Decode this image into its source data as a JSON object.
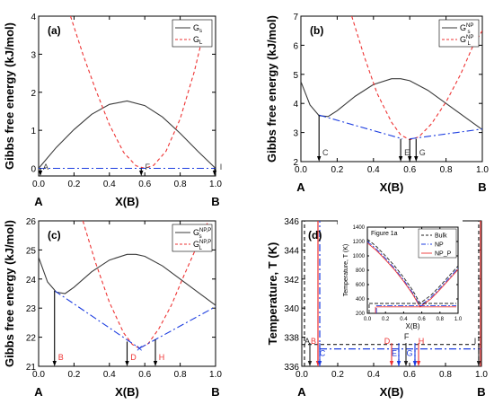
{
  "colors": {
    "solid": "#3a3a3a",
    "liquid": "#ee3333",
    "tangent": "#1c3de0",
    "axis": "#000000",
    "bulk": "#222222",
    "np": "#1c3de0",
    "np_p": "#ee3333"
  },
  "chart_data": [
    {
      "type": "line",
      "panel": "(a)",
      "ylabel": "Gibbs free energy (kJ/mol)",
      "xlabel": "X(B)",
      "end_labels": [
        "A",
        "B"
      ],
      "xlim": [
        0,
        1
      ],
      "ylim": [
        -0.2,
        4
      ],
      "xticks": [
        "0.0",
        "0.2",
        "0.4",
        "0.6",
        "0.8",
        "1.0"
      ],
      "yticks": [
        "0",
        "1",
        "2",
        "3",
        "4"
      ],
      "legend": [
        {
          "label": "G",
          "sub": "s",
          "sup": ""
        },
        {
          "label": "G",
          "sub": "L",
          "sup": ""
        }
      ],
      "series": [
        {
          "style": "solid",
          "x": [
            0,
            0.1,
            0.2,
            0.3,
            0.4,
            0.5,
            0.6,
            0.7,
            0.8,
            0.9,
            1.0
          ],
          "y": [
            0,
            0.55,
            1.02,
            1.42,
            1.68,
            1.77,
            1.65,
            1.35,
            0.92,
            0.45,
            0
          ]
        },
        {
          "style": "liquid",
          "x": [
            0.18,
            0.25,
            0.32,
            0.4,
            0.48,
            0.55,
            0.6,
            0.65,
            0.72,
            0.8,
            0.88,
            0.95
          ],
          "y": [
            4.0,
            3.0,
            2.1,
            1.15,
            0.42,
            0.07,
            0,
            0.08,
            0.45,
            1.3,
            2.55,
            3.9
          ]
        },
        {
          "style": "tangent",
          "x": [
            0,
            1
          ],
          "y": [
            0,
            0
          ]
        }
      ],
      "drops": [
        {
          "x": 0.01,
          "y": 0.0,
          "label": "A",
          "color": "solid"
        },
        {
          "x": 0.58,
          "y": 0.0,
          "label": "F",
          "color": "solid"
        },
        {
          "x": 0.995,
          "y": 0.0,
          "label": "I",
          "color": "solid"
        }
      ]
    },
    {
      "type": "line",
      "panel": "(b)",
      "ylabel": "Gibbs free energy (kJ/mol)",
      "xlabel": "X(B)",
      "end_labels": [
        "A",
        "B"
      ],
      "xlim": [
        0,
        1
      ],
      "ylim": [
        2,
        7
      ],
      "xticks": [
        "0.0",
        "0.2",
        "0.4",
        "0.6",
        "0.8",
        "1.0"
      ],
      "yticks": [
        "2",
        "3",
        "4",
        "5",
        "6",
        "7"
      ],
      "legend": [
        {
          "label": "G",
          "sub": "s",
          "sup": "NP"
        },
        {
          "label": "G",
          "sub": "L",
          "sup": "NP"
        }
      ],
      "series": [
        {
          "style": "solid",
          "x": [
            0,
            0.05,
            0.1,
            0.15,
            0.2,
            0.3,
            0.4,
            0.5,
            0.55,
            0.6,
            0.7,
            0.8,
            0.9,
            1.0
          ],
          "y": [
            4.75,
            3.95,
            3.58,
            3.55,
            3.75,
            4.25,
            4.65,
            4.85,
            4.85,
            4.78,
            4.45,
            4.0,
            3.55,
            3.1
          ]
        },
        {
          "style": "liquid",
          "x": [
            0.28,
            0.35,
            0.42,
            0.5,
            0.55,
            0.6,
            0.65,
            0.72,
            0.8,
            0.88,
            0.95,
            1.0
          ],
          "y": [
            7.0,
            5.6,
            4.35,
            3.35,
            2.92,
            2.75,
            2.85,
            3.3,
            4.05,
            5.0,
            6.0,
            6.5
          ]
        },
        {
          "style": "tangent",
          "x": [
            0.1,
            0.56
          ],
          "y": [
            3.6,
            2.78
          ]
        },
        {
          "style": "tangent",
          "x": [
            0.6,
            1.0
          ],
          "y": [
            2.78,
            3.12
          ]
        }
      ],
      "drops": [
        {
          "x": 0.1,
          "y": 3.6,
          "label": "C",
          "color": "solid"
        },
        {
          "x": 0.55,
          "y": 2.78,
          "label": "E",
          "color": "solid"
        },
        {
          "x": 0.6,
          "y": 2.78,
          "label": "",
          "color": "solid"
        },
        {
          "x": 0.635,
          "y": 2.78,
          "label": "G",
          "color": "solid"
        }
      ]
    },
    {
      "type": "line",
      "panel": "(c)",
      "ylabel": "Gibbs free energy (kJ/mol)",
      "xlabel": "X(B)",
      "end_labels": [
        "A",
        "B"
      ],
      "xlim": [
        0,
        1
      ],
      "ylim": [
        21,
        26
      ],
      "xticks": [
        "0.0",
        "0.2",
        "0.4",
        "0.6",
        "0.8",
        "1.0"
      ],
      "yticks": [
        "21",
        "22",
        "23",
        "24",
        "25",
        "26"
      ],
      "legend": [
        {
          "label": "G",
          "sub": "s",
          "sup": "NP,P"
        },
        {
          "label": "G",
          "sub": "L",
          "sup": "NP,P"
        }
      ],
      "series": [
        {
          "style": "solid",
          "x": [
            0,
            0.05,
            0.1,
            0.15,
            0.2,
            0.3,
            0.4,
            0.5,
            0.55,
            0.6,
            0.7,
            0.8,
            0.9,
            1.0
          ],
          "y": [
            24.75,
            23.9,
            23.55,
            23.5,
            23.72,
            24.25,
            24.65,
            24.85,
            24.85,
            24.78,
            24.45,
            24.0,
            23.55,
            23.1
          ]
        },
        {
          "style": "liquid",
          "x": [
            0.25,
            0.32,
            0.4,
            0.48,
            0.53,
            0.57,
            0.62,
            0.68,
            0.75,
            0.82,
            0.9,
            0.96
          ],
          "y": [
            26.0,
            24.6,
            23.2,
            22.15,
            21.75,
            21.62,
            21.78,
            22.3,
            23.1,
            24.1,
            25.2,
            26.0
          ]
        },
        {
          "style": "tangent",
          "x": [
            0.09,
            0.57
          ],
          "y": [
            23.6,
            21.62
          ]
        },
        {
          "style": "tangent",
          "x": [
            0.57,
            1.0
          ],
          "y": [
            21.62,
            23.05
          ]
        }
      ],
      "marker": {
        "x": 0.57,
        "y": 21.62,
        "symbol": "×",
        "color": "tangent"
      },
      "drops": [
        {
          "x": 0.09,
          "y": 23.6,
          "label": "B",
          "color": "solid",
          "label_color": "liquid"
        },
        {
          "x": 0.5,
          "y": 21.85,
          "label": "D",
          "color": "solid",
          "label_color": "liquid"
        },
        {
          "x": 0.66,
          "y": 21.92,
          "label": "H",
          "color": "solid",
          "label_color": "liquid"
        }
      ]
    },
    {
      "type": "line",
      "panel": "(d)",
      "ylabel": "Temperature, T (K)",
      "xlabel": "X(B)",
      "end_labels": [
        "A",
        "B"
      ],
      "xlim": [
        0,
        1
      ],
      "ylim": [
        336,
        346
      ],
      "xticks": [
        "0.0",
        "0.2",
        "0.4",
        "0.6",
        "0.8",
        "1.0"
      ],
      "yticks": [
        "336",
        "338",
        "340",
        "342",
        "344",
        "346"
      ],
      "series": [
        {
          "style": "bulk",
          "dash": "4 3",
          "x": [
            0,
            1
          ],
          "y": [
            337.5,
            337.5
          ]
        },
        {
          "style": "bulk",
          "dash": "4 3",
          "x": [
            0.015,
            0.015
          ],
          "y": [
            336,
            346
          ]
        },
        {
          "style": "bulk",
          "dash": "4 3",
          "x": [
            0.985,
            0.985
          ],
          "y": [
            336,
            346
          ]
        },
        {
          "style": "np",
          "dash": "8 3 2 3",
          "x": [
            0.1,
            0.1
          ],
          "y": [
            336,
            346
          ]
        },
        {
          "style": "np",
          "dash": "8 3 2 3",
          "x": [
            0.1,
            1
          ],
          "y": [
            337.2,
            337.2
          ]
        },
        {
          "style": "np",
          "dash": "8 3 2 3",
          "x": [
            0.54,
            0.54
          ],
          "y": [
            336,
            337.2
          ]
        },
        {
          "style": "np",
          "dash": "8 3 2 3",
          "x": [
            0.63,
            0.63
          ],
          "y": [
            336,
            337.2
          ]
        },
        {
          "style": "np_p",
          "dash": "",
          "x": [
            0.09,
            0.09
          ],
          "y": [
            336,
            346
          ]
        },
        {
          "style": "np_p",
          "dash": "",
          "x": [
            0.995,
            0.995
          ],
          "y": [
            336,
            346
          ]
        }
      ],
      "annotations": [
        {
          "x": 0.03,
          "y": 337.55,
          "text": "A",
          "color": "bulk"
        },
        {
          "x": 0.065,
          "y": 337.55,
          "text": "B",
          "color": "np_p"
        },
        {
          "x": 0.115,
          "y": 336.7,
          "text": "C",
          "color": "np"
        },
        {
          "x": 0.475,
          "y": 337.55,
          "text": "D",
          "color": "np_p"
        },
        {
          "x": 0.515,
          "y": 336.7,
          "text": "E",
          "color": "np"
        },
        {
          "x": 0.583,
          "y": 337.85,
          "text": "F",
          "color": "bulk"
        },
        {
          "x": 0.6,
          "y": 336.7,
          "text": "G",
          "color": "np"
        },
        {
          "x": 0.665,
          "y": 337.55,
          "text": "H",
          "color": "np_p"
        },
        {
          "x": 0.965,
          "y": 337.55,
          "text": "I",
          "color": "bulk"
        }
      ],
      "arrows": [
        {
          "x": 0.045,
          "color": "bulk"
        },
        {
          "x": 0.09,
          "color": "np_p"
        },
        {
          "x": 0.1,
          "color": "np"
        },
        {
          "x": 0.5,
          "color": "np_p"
        },
        {
          "x": 0.54,
          "color": "np"
        },
        {
          "x": 0.58,
          "color": "bulk"
        },
        {
          "x": 0.63,
          "color": "np"
        },
        {
          "x": 0.65,
          "color": "np_p"
        },
        {
          "x": 0.985,
          "color": "bulk"
        }
      ],
      "inset": {
        "title": "Figure 1a",
        "ylabel": "Temperature, T (K)",
        "xlabel": "X(B)",
        "xlim": [
          0,
          1
        ],
        "ylim": [
          200,
          1400
        ],
        "xticks": [
          "0.0",
          "0.2",
          "0.4",
          "0.6",
          "0.8",
          "1.0"
        ],
        "yticks": [
          "200",
          "400",
          "600",
          "800",
          "1000",
          "1200",
          "1400"
        ],
        "legend": [
          "Bulk",
          "NP",
          "NP_P"
        ],
        "series": [
          {
            "name": "Bulk",
            "style": "bulk",
            "dash": "4 2",
            "x": [
              0,
              0.1,
              0.2,
              0.3,
              0.4,
              0.5,
              0.58,
              0.7,
              0.8,
              0.9,
              1.0
            ],
            "y": [
              1234,
              1130,
              1000,
              860,
              700,
              520,
              340,
              450,
              580,
              720,
              860
            ]
          },
          {
            "name": "NP",
            "style": "np",
            "dash": "6 2 2 2",
            "x": [
              0,
              0.1,
              0.2,
              0.3,
              0.4,
              0.5,
              0.58,
              0.7,
              0.8,
              0.9,
              1.0
            ],
            "y": [
              1200,
              1095,
              965,
              825,
              665,
              485,
              305,
              420,
              550,
              690,
              830
            ]
          },
          {
            "name": "NP_P",
            "style": "np_p",
            "dash": "",
            "x": [
              0,
              0.1,
              0.2,
              0.3,
              0.4,
              0.5,
              0.58,
              0.7,
              0.8,
              0.9,
              1.0
            ],
            "y": [
              1180,
              1075,
              945,
              805,
              645,
              465,
              290,
              400,
              530,
              670,
              810
            ]
          },
          {
            "name": "",
            "style": "bulk",
            "dash": "4 2",
            "x": [
              0.02,
              0.98
            ],
            "y": [
              338,
              338
            ]
          },
          {
            "name": "",
            "style": "np",
            "dash": "6 2 2 2",
            "x": [
              0.1,
              0.98
            ],
            "y": [
              305,
              305
            ]
          },
          {
            "name": "",
            "style": "np_p",
            "dash": "",
            "x": [
              0.1,
              0.98
            ],
            "y": [
              290,
              290
            ]
          },
          {
            "name": "",
            "style": "bulk",
            "dash": "4 2",
            "x": [
              0.02,
              0.02
            ],
            "y": [
              200,
              338
            ]
          },
          {
            "name": "",
            "style": "np",
            "dash": "6 2 2 2",
            "x": [
              0.1,
              0.1
            ],
            "y": [
              200,
              305
            ]
          },
          {
            "name": "",
            "style": "np_p",
            "dash": "",
            "x": [
              0.09,
              0.09
            ],
            "y": [
              200,
              290
            ]
          }
        ]
      }
    }
  ]
}
